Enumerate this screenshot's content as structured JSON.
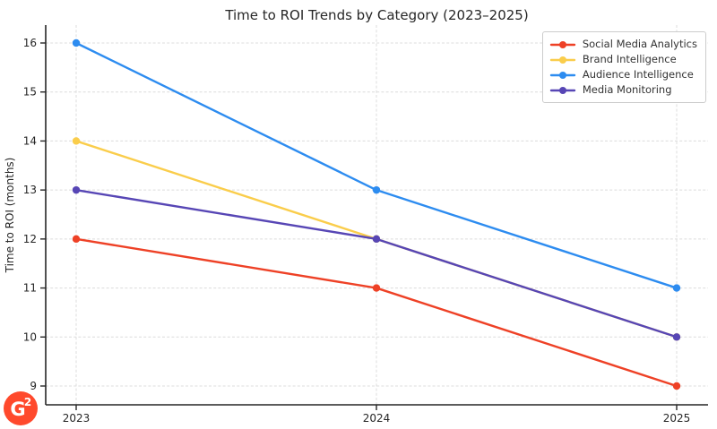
{
  "chart_data": {
    "type": "line",
    "title": "Time to ROI Trends by Category (2023–2025)",
    "xlabel": "",
    "ylabel": "Time to ROI (months)",
    "categories": [
      "2023",
      "2024",
      "2025"
    ],
    "yticks": [
      9,
      10,
      11,
      12,
      13,
      14,
      15,
      16
    ],
    "ylim": [
      8.6,
      16.4
    ],
    "grid": true,
    "legend_position": "upper right",
    "series": [
      {
        "name": "Social Media Analytics",
        "values": [
          12,
          11,
          9
        ],
        "color": "#ee4126"
      },
      {
        "name": "Brand Intelligence",
        "values": [
          14,
          12,
          10
        ],
        "color": "#facd4b"
      },
      {
        "name": "Audience Intelligence",
        "values": [
          16,
          13,
          11
        ],
        "color": "#2d8cf0"
      },
      {
        "name": "Media Monitoring",
        "values": [
          13,
          12,
          10
        ],
        "color": "#5746b5"
      }
    ]
  },
  "branding": {
    "logo_g": "G",
    "logo_sup": "2",
    "logo_color": "#ff492c"
  }
}
